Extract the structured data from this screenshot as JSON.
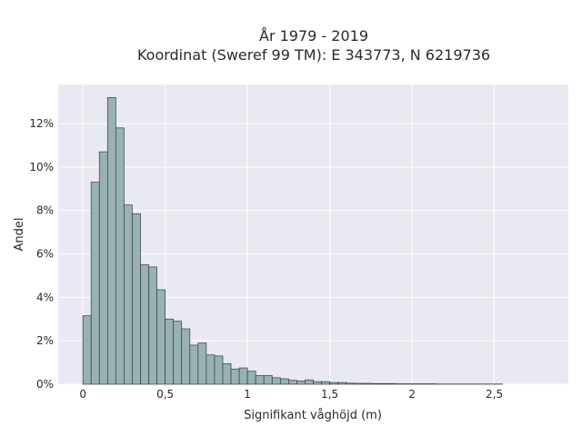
{
  "chart_data": {
    "type": "bar",
    "title_line1": "År 1979 - 2019",
    "title_line2": "Koordinat (Sweref 99 TM): E 343773, N 6219736",
    "xlabel": "Signifikant våghöjd (m)",
    "ylabel": "Andel",
    "xlim": [
      -0.15,
      2.95
    ],
    "ylim": [
      0,
      13.8
    ],
    "bin_width": 0.05,
    "bin_start": 0.0,
    "x_ticks": [
      {
        "value": 0,
        "label": "0"
      },
      {
        "value": 0.5,
        "label": "0,5"
      },
      {
        "value": 1,
        "label": "1"
      },
      {
        "value": 1.5,
        "label": "1,5"
      },
      {
        "value": 2,
        "label": "2"
      },
      {
        "value": 2.5,
        "label": "2,5"
      }
    ],
    "y_ticks": [
      {
        "value": 0,
        "label": "0%"
      },
      {
        "value": 2,
        "label": "2%"
      },
      {
        "value": 4,
        "label": "4%"
      },
      {
        "value": 6,
        "label": "6%"
      },
      {
        "value": 8,
        "label": "8%"
      },
      {
        "value": 10,
        "label": "10%"
      },
      {
        "value": 12,
        "label": "12%"
      }
    ],
    "values": [
      3.15,
      9.3,
      10.7,
      13.2,
      11.8,
      8.25,
      7.85,
      5.5,
      5.4,
      4.35,
      3.0,
      2.9,
      2.55,
      1.8,
      1.9,
      1.35,
      1.3,
      0.95,
      0.7,
      0.75,
      0.6,
      0.4,
      0.4,
      0.3,
      0.25,
      0.18,
      0.15,
      0.2,
      0.12,
      0.12,
      0.08,
      0.08,
      0.05,
      0.04,
      0.04,
      0.03,
      0.03,
      0.03,
      0.02,
      0.02,
      0.02,
      0.02,
      0.02,
      0.01,
      0.01,
      0.01,
      0.01,
      0.01,
      0.01,
      0.01,
      0.01
    ],
    "colors": {
      "plot_bg": "#e9e9f1",
      "grid": "#ffffff",
      "bar_fill": "#98b2b3",
      "bar_stroke": "#3a3a3a"
    }
  }
}
